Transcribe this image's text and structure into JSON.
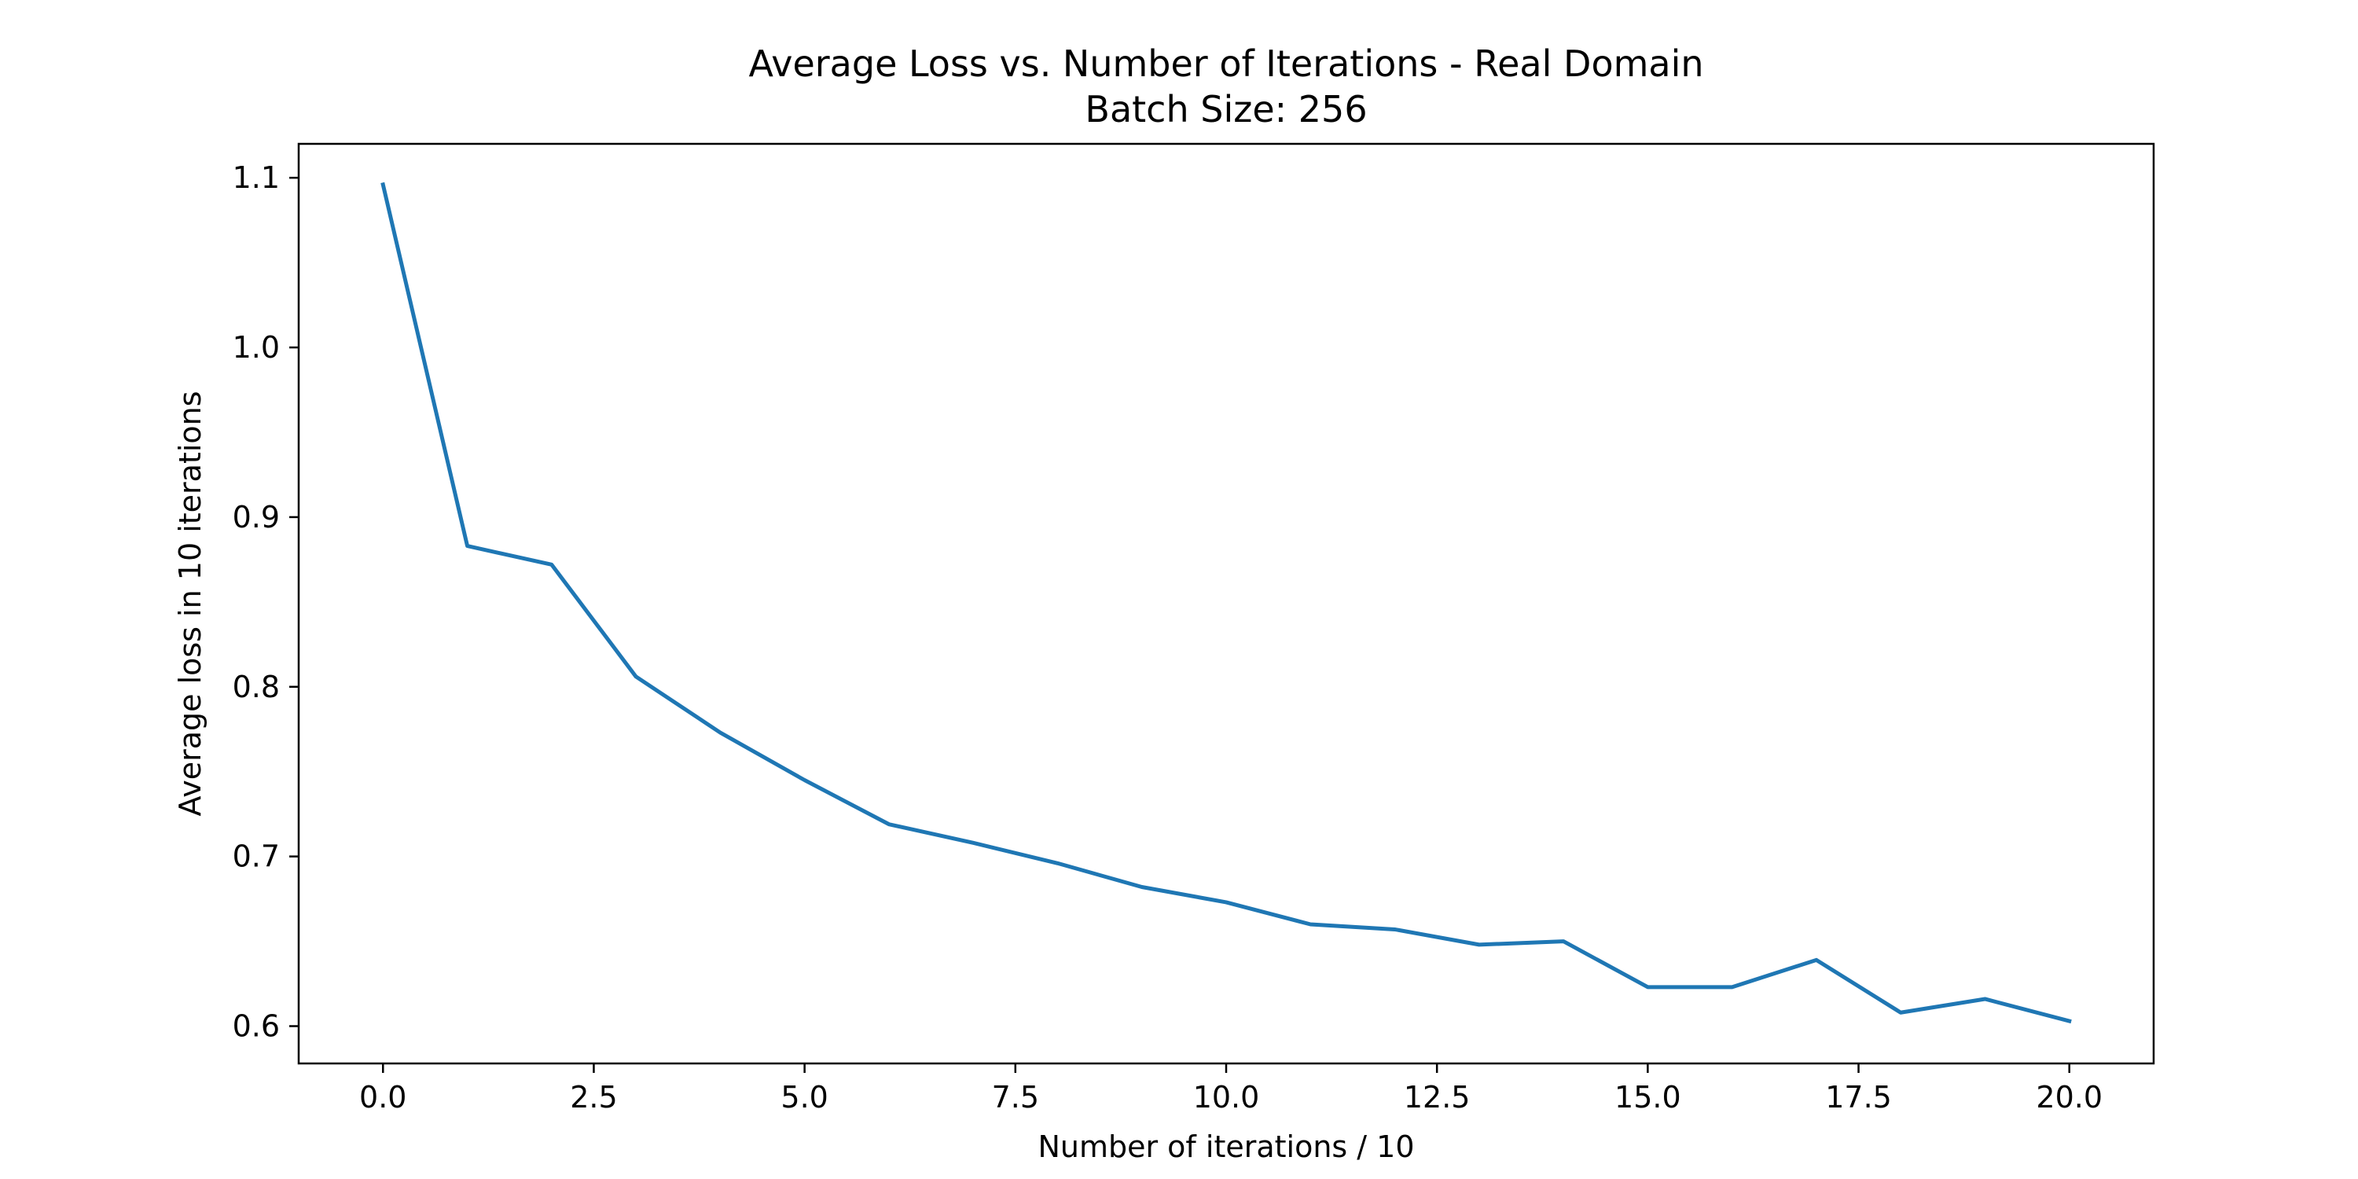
{
  "chart_data": {
    "type": "line",
    "title": "Average Loss vs. Number of Iterations - Real Domain",
    "subtitle": "Batch Size: 256",
    "xlabel": "Number of iterations / 10",
    "ylabel": "Average loss in 10 iterations",
    "xlim": [
      -1.0,
      21.0
    ],
    "ylim": [
      0.578,
      1.12
    ],
    "x_ticks": [
      0.0,
      2.5,
      5.0,
      7.5,
      10.0,
      12.5,
      15.0,
      17.5,
      20.0
    ],
    "x_tick_labels": [
      "0.0",
      "2.5",
      "5.0",
      "7.5",
      "10.0",
      "12.5",
      "15.0",
      "17.5",
      "20.0"
    ],
    "y_ticks": [
      0.6,
      0.7,
      0.8,
      0.9,
      1.0,
      1.1
    ],
    "y_tick_labels": [
      "0.6",
      "0.7",
      "0.8",
      "0.9",
      "1.0",
      "1.1"
    ],
    "grid": false,
    "series": [
      {
        "color": "#1f77b4",
        "x": [
          0,
          1,
          2,
          3,
          4,
          5,
          6,
          7,
          8,
          9,
          10,
          11,
          12,
          13,
          14,
          15,
          16,
          17,
          18,
          19,
          20
        ],
        "values": [
          1.096,
          0.883,
          0.872,
          0.806,
          0.773,
          0.745,
          0.719,
          0.708,
          0.696,
          0.682,
          0.673,
          0.66,
          0.657,
          0.648,
          0.65,
          0.623,
          0.623,
          0.639,
          0.608,
          0.616,
          0.603
        ]
      }
    ]
  }
}
